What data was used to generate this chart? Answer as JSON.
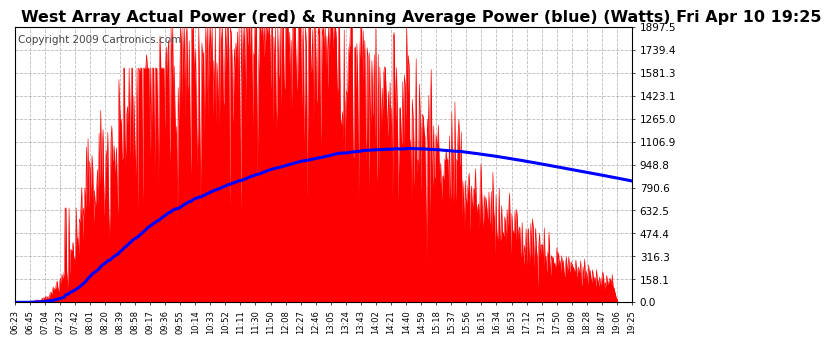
{
  "title": "West Array Actual Power (red) & Running Average Power (blue) (Watts) Fri Apr 10 19:25",
  "copyright": "Copyright 2009 Cartronics.com",
  "title_fontsize": 11.5,
  "copyright_fontsize": 7.5,
  "bg_color": "#ffffff",
  "plot_bg_color": "#ffffff",
  "red_color": "#ff0000",
  "blue_color": "#0000ff",
  "text_color": "#000000",
  "grid_color": "#aaaaaa",
  "yticks": [
    0.0,
    158.1,
    316.3,
    474.4,
    632.5,
    790.6,
    948.8,
    1106.9,
    1265.0,
    1423.1,
    1581.3,
    1739.4,
    1897.5
  ],
  "ymax": 1897.5,
  "xtick_labels": [
    "06:23",
    "06:45",
    "07:04",
    "07:23",
    "07:42",
    "08:01",
    "08:20",
    "08:39",
    "08:58",
    "09:17",
    "09:36",
    "09:55",
    "10:14",
    "10:33",
    "10:52",
    "11:11",
    "11:30",
    "11:50",
    "12:08",
    "12:27",
    "12:46",
    "13:05",
    "13:24",
    "13:43",
    "14:02",
    "14:21",
    "14:40",
    "14:59",
    "15:18",
    "15:37",
    "15:56",
    "16:15",
    "16:34",
    "16:53",
    "17:12",
    "17:31",
    "17:50",
    "18:09",
    "18:28",
    "18:47",
    "19:06",
    "19:25"
  ]
}
